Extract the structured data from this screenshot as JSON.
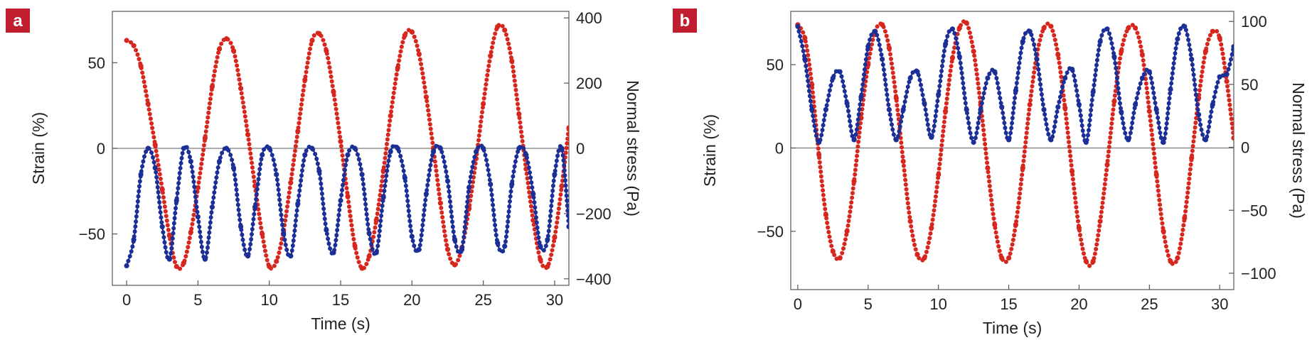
{
  "figure": {
    "colors": {
      "strain": "#d7261e",
      "stress": "#1c2f96",
      "panel_label_bg": "#be1e2d",
      "axis": "#555555",
      "text": "#231f20"
    }
  },
  "chart_data": [
    {
      "type": "scatter",
      "panel": "a",
      "title": "",
      "xlabel": "Time (s)",
      "ylabel": "Strain (%)",
      "y2label": "Normal stress (Pa)",
      "xlim": [
        -1,
        31
      ],
      "ylim": [
        -80,
        80
      ],
      "y2lim": [
        -420,
        420
      ],
      "xticks": [
        0,
        5,
        10,
        15,
        20,
        25,
        30
      ],
      "yticks": [
        -50,
        0,
        50
      ],
      "y2ticks": [
        -400,
        -200,
        0,
        200,
        400
      ],
      "tick_labels_x": [
        "0",
        "5",
        "10",
        "15",
        "20",
        "25",
        "30"
      ],
      "tick_labels_y": [
        "−50",
        "0",
        "50"
      ],
      "tick_labels_y2": [
        "−400",
        "−200",
        "0",
        "200",
        "400"
      ],
      "grid": false,
      "zero_line": true,
      "series": [
        {
          "role": "strain",
          "axis": "left",
          "x": [
            0,
            0.5,
            1,
            1.5,
            2,
            2.5,
            3,
            3.5,
            4,
            4.5,
            5,
            5.5,
            6,
            6.5,
            7,
            7.5,
            8,
            8.5,
            9,
            9.5,
            10,
            10.5,
            11,
            11.5,
            12,
            12.5,
            13,
            13.5,
            14,
            14.5,
            15,
            15.5,
            16,
            16.5,
            17,
            17.5,
            18,
            18.5,
            19,
            19.5,
            20,
            20.5,
            21,
            21.5,
            22,
            22.5,
            23,
            23.5,
            24,
            24.5,
            25,
            25.5,
            26,
            26.5,
            27,
            27.5,
            28,
            28.5,
            29,
            29.5,
            30,
            30.5,
            31
          ],
          "y": [
            63,
            60,
            48,
            26,
            2,
            -24,
            -51,
            -69,
            -67,
            -49,
            -23,
            6,
            36,
            58,
            64,
            57,
            35,
            8,
            -22,
            -50,
            -69,
            -66,
            -48,
            -20,
            10,
            40,
            63,
            67,
            57,
            33,
            4,
            -28,
            -57,
            -70,
            -63,
            -42,
            -13,
            19,
            47,
            66,
            68,
            55,
            30,
            0,
            -32,
            -59,
            -68,
            -58,
            -35,
            -6,
            26,
            54,
            71,
            69,
            51,
            20,
            -12,
            -42,
            -65,
            -69,
            -52,
            -22,
            12
          ]
        },
        {
          "role": "normal-stress",
          "axis": "right",
          "x": [
            0,
            0.5,
            1,
            1.5,
            2,
            2.5,
            3,
            3.5,
            4,
            4.5,
            5,
            5.5,
            6,
            6.5,
            7,
            7.5,
            8,
            8.5,
            9,
            9.5,
            10,
            10.5,
            11,
            11.5,
            12,
            12.5,
            13,
            13.5,
            14,
            14.5,
            15,
            15.5,
            16,
            16.5,
            17,
            17.5,
            18,
            18.5,
            19,
            19.5,
            20,
            20.5,
            21,
            21.5,
            22,
            22.5,
            23,
            23.5,
            24,
            24.5,
            25,
            25.5,
            26,
            26.5,
            27,
            27.5,
            28,
            28.5,
            29,
            29.5,
            30,
            30.5,
            31
          ],
          "y": [
            -360,
            -280,
            -80,
            0,
            -60,
            -240,
            -340,
            -160,
            0,
            -40,
            -210,
            -340,
            -180,
            -40,
            0,
            -60,
            -240,
            -330,
            -180,
            -20,
            0,
            -80,
            -260,
            -330,
            -170,
            -20,
            0,
            -70,
            -250,
            -320,
            -160,
            -20,
            0,
            -80,
            -260,
            -320,
            -150,
            -10,
            0,
            -90,
            -270,
            -310,
            -140,
            -10,
            0,
            -100,
            -280,
            -310,
            -120,
            -10,
            0,
            -110,
            -290,
            -300,
            -110,
            0,
            -20,
            -140,
            -300,
            -280,
            -80,
            0,
            -240
          ]
        }
      ]
    },
    {
      "type": "scatter",
      "panel": "b",
      "title": "",
      "xlabel": "Time (s)",
      "ylabel": "Strain (%)",
      "y2label": "Normal stress (Pa)",
      "xlim": [
        -0.5,
        31
      ],
      "ylim": [
        -85,
        82
      ],
      "y2lim": [
        -113,
        108
      ],
      "xticks": [
        0,
        5,
        10,
        15,
        20,
        25,
        30
      ],
      "yticks": [
        -50,
        0,
        50
      ],
      "y2ticks": [
        -100,
        -50,
        0,
        50,
        100
      ],
      "tick_labels_x": [
        "0",
        "5",
        "10",
        "15",
        "20",
        "25",
        "30"
      ],
      "tick_labels_y": [
        "−50",
        "0",
        "50"
      ],
      "tick_labels_y2": [
        "−100",
        "−50",
        "0",
        "50",
        "100"
      ],
      "grid": false,
      "zero_line": true,
      "series": [
        {
          "role": "strain",
          "axis": "left",
          "x": [
            0,
            0.5,
            1,
            1.5,
            2,
            2.5,
            3,
            3.5,
            4,
            4.5,
            5,
            5.5,
            6,
            6.5,
            7,
            7.5,
            8,
            8.5,
            9,
            9.5,
            10,
            10.5,
            11,
            11.5,
            12,
            12.5,
            13,
            13.5,
            14,
            14.5,
            15,
            15.5,
            16,
            16.5,
            17,
            17.5,
            18,
            18.5,
            19,
            19.5,
            20,
            20.5,
            21,
            21.5,
            22,
            22.5,
            23,
            23.5,
            24,
            24.5,
            25,
            25.5,
            26,
            26.5,
            27,
            27.5,
            28,
            28.5,
            29,
            29.5,
            30,
            30.5,
            31
          ],
          "y": [
            74,
            66,
            38,
            -4,
            -40,
            -62,
            -66,
            -50,
            -20,
            18,
            50,
            70,
            74,
            60,
            30,
            -8,
            -44,
            -64,
            -66,
            -48,
            -16,
            22,
            54,
            72,
            75,
            58,
            26,
            -12,
            -46,
            -66,
            -66,
            -46,
            -12,
            26,
            56,
            72,
            73,
            56,
            24,
            -14,
            -48,
            -68,
            -68,
            -44,
            -10,
            28,
            58,
            72,
            72,
            56,
            22,
            -16,
            -50,
            -68,
            -66,
            -42,
            -6,
            30,
            58,
            70,
            66,
            40,
            6
          ]
        },
        {
          "role": "normal-stress",
          "axis": "right",
          "x": [
            0,
            0.5,
            1,
            1.5,
            2,
            2.5,
            3,
            3.5,
            4,
            4.5,
            5,
            5.5,
            6,
            6.5,
            7,
            7.5,
            8,
            8.5,
            9,
            9.5,
            10,
            10.5,
            11,
            11.5,
            12,
            12.5,
            13,
            13.5,
            14,
            14.5,
            15,
            15.5,
            16,
            16.5,
            17,
            17.5,
            18,
            18.5,
            19,
            19.5,
            20,
            20.5,
            21,
            21.5,
            22,
            22.5,
            23,
            23.5,
            24,
            24.5,
            25,
            25.5,
            26,
            26.5,
            27,
            27.5,
            28,
            28.5,
            29,
            29.5,
            30,
            30.5,
            31
          ],
          "y": [
            96,
            70,
            30,
            4,
            30,
            55,
            60,
            35,
            6,
            40,
            80,
            92,
            70,
            30,
            6,
            30,
            55,
            60,
            35,
            8,
            42,
            82,
            94,
            72,
            30,
            4,
            30,
            55,
            60,
            32,
            6,
            45,
            84,
            92,
            70,
            30,
            6,
            32,
            55,
            62,
            34,
            4,
            44,
            84,
            94,
            72,
            28,
            6,
            34,
            55,
            60,
            30,
            4,
            46,
            86,
            96,
            70,
            26,
            6,
            34,
            56,
            58,
            80
          ]
        }
      ]
    }
  ],
  "panels": {
    "a": {
      "label": "a"
    },
    "b": {
      "label": "b"
    }
  }
}
